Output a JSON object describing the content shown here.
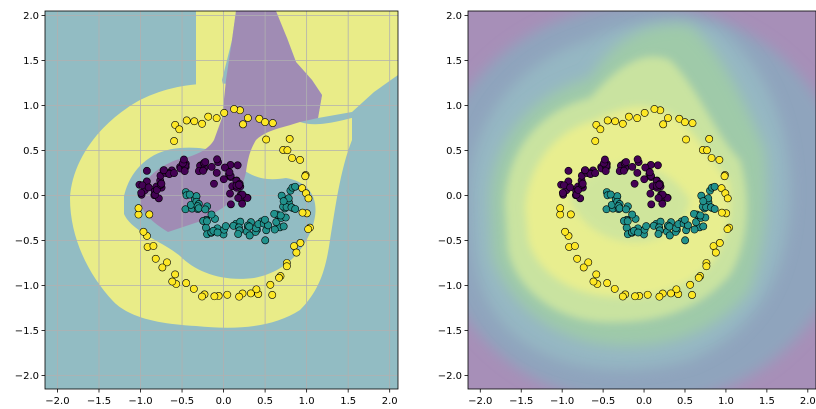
{
  "chart_data": [
    {
      "type": "scatter",
      "subtype": "decision-regions",
      "title": "",
      "xlabel": "",
      "ylabel": "",
      "xlim": [
        -2.15,
        2.1
      ],
      "ylim": [
        -2.15,
        2.05
      ],
      "xticks": [
        "−2.0",
        "−1.5",
        "−1.0",
        "−0.5",
        "0.0",
        "0.5",
        "1.0",
        "1.5",
        "2.0"
      ],
      "yticks": [
        "−2.0",
        "−1.5",
        "−1.0",
        "−0.5",
        "0.0",
        "0.5",
        "1.0",
        "1.5",
        "2.0"
      ],
      "grid": true,
      "background": "class regions (teal / yellow / purple)",
      "region_colors": {
        "teal": "#92bcc3",
        "yellow": "#e9ec88",
        "purple": "#a08cb4"
      },
      "class_colors": {
        "class_0": "#440154",
        "class_1": "#21918c",
        "class_2": "#fde725"
      }
    },
    {
      "type": "scatter",
      "subtype": "probability-contours",
      "title": "",
      "xlabel": "",
      "ylabel": "",
      "xlim": [
        -2.15,
        2.1
      ],
      "ylim": [
        -2.15,
        2.05
      ],
      "xticks": [
        "−2.0",
        "−1.5",
        "−1.0",
        "−0.5",
        "0.0",
        "0.5",
        "1.0",
        "1.5",
        "2.0"
      ],
      "yticks": [
        "−2.0",
        "−1.5",
        "−1.0",
        "−0.5",
        "0.0",
        "0.5",
        "1.0",
        "1.5",
        "2.0"
      ],
      "grid": false,
      "background": "filled contours of class confidence (viridis, low alpha)",
      "class_colors": {
        "class_0": "#440154",
        "class_1": "#21918c",
        "class_2": "#fde725"
      }
    }
  ]
}
